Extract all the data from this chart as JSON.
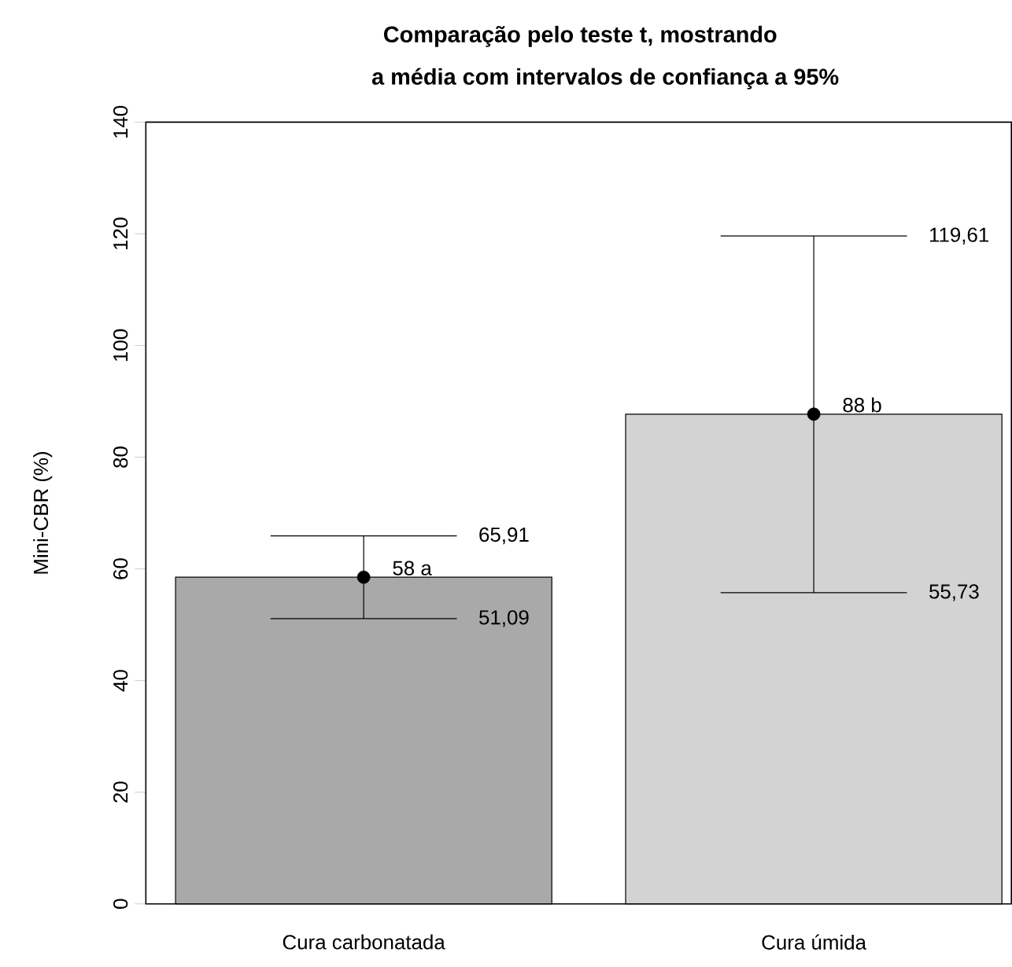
{
  "chart_data": {
    "type": "bar",
    "title": "Comparação pelo teste t, mostrando",
    "subtitle": "a média com intervalos de confiança a 95%",
    "ylabel": "Mini-CBR (%)",
    "categories": [
      "Cura carbonatada",
      "Cura úmida"
    ],
    "series": [
      {
        "colors": [
          "#a9a9a9",
          "#d3d3d3"
        ],
        "values": [
          58.5,
          87.7
        ],
        "value_labels": [
          "58 a",
          "88 b"
        ],
        "errors": [
          [
            51.09,
            65.91
          ],
          [
            55.73,
            119.61
          ]
        ]
      },
      {
        "type": "scatter",
        "color": "#000000",
        "values": [
          58.5,
          87.7
        ]
      }
    ],
    "marker": "circle",
    "ylim": [
      0,
      140
    ],
    "yticks": [
      0,
      20,
      40,
      60,
      80,
      100,
      120,
      140
    ],
    "annotations": [
      "65,91",
      "51,09",
      "119,61",
      "55,73"
    ]
  }
}
